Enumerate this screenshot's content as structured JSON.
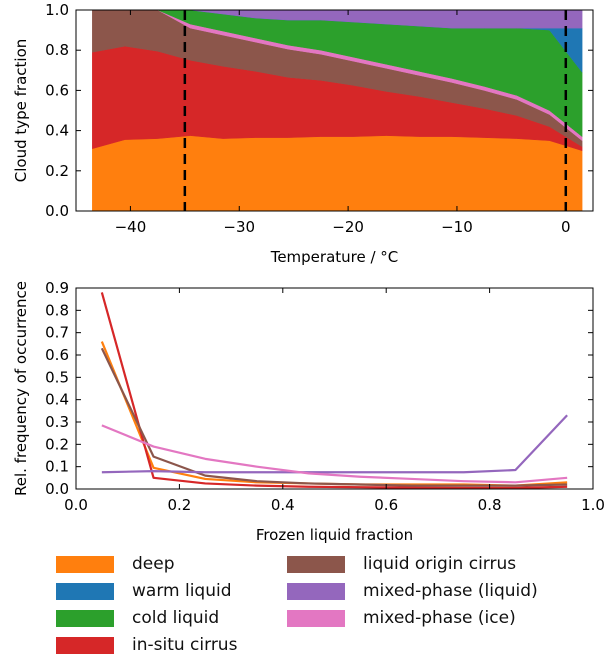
{
  "colors": {
    "deep": "#ff7f0e",
    "warm_liquid": "#1f77b4",
    "cold_liquid": "#2ca02c",
    "in_situ_cirrus": "#d62728",
    "liquid_origin_cirrus": "#8c564b",
    "mixed_phase_liquid": "#9467bd",
    "mixed_phase_ice": "#e377c2"
  },
  "legend": [
    {
      "key": "deep",
      "label": "deep"
    },
    {
      "key": "warm_liquid",
      "label": "warm liquid"
    },
    {
      "key": "cold_liquid",
      "label": "cold liquid"
    },
    {
      "key": "in_situ_cirrus",
      "label": "in-situ cirrus"
    },
    {
      "key": "liquid_origin_cirrus",
      "label": "liquid origin cirrus"
    },
    {
      "key": "mixed_phase_liquid",
      "label": "mixed-phase (liquid)"
    },
    {
      "key": "mixed_phase_ice",
      "label": "mixed-phase (ice)"
    }
  ],
  "chart_data": [
    {
      "type": "area",
      "stacked": true,
      "xlabel": "Temperature / °C",
      "ylabel": "Cloud type fraction",
      "xlim": [
        -45,
        2.5
      ],
      "ylim": [
        0,
        1.0
      ],
      "xticks": [
        -40,
        -30,
        -20,
        -10,
        0
      ],
      "xtick_labels": [
        "−40",
        "−30",
        "−20",
        "−10",
        "0"
      ],
      "yticks": [
        0.0,
        0.2,
        0.4,
        0.6,
        0.8,
        1.0
      ],
      "ytick_labels": [
        "0.0",
        "0.2",
        "0.4",
        "0.6",
        "0.8",
        "1.0"
      ],
      "vlines": [
        -35,
        0
      ],
      "vline_style": "dashed",
      "x": [
        -43.5,
        -40.5,
        -37.5,
        -34.5,
        -31.5,
        -28.5,
        -25.5,
        -22.5,
        -19.5,
        -16.5,
        -13.5,
        -10.5,
        -7.5,
        -4.5,
        -1.5,
        1.5
      ],
      "series": [
        {
          "key": "deep",
          "values": [
            0.31,
            0.355,
            0.36,
            0.375,
            0.36,
            0.365,
            0.365,
            0.37,
            0.37,
            0.375,
            0.37,
            0.37,
            0.365,
            0.36,
            0.35,
            0.3
          ]
        },
        {
          "key": "in_situ_cirrus",
          "values": [
            0.48,
            0.465,
            0.435,
            0.375,
            0.36,
            0.33,
            0.3,
            0.28,
            0.255,
            0.22,
            0.2,
            0.17,
            0.145,
            0.115,
            0.07,
            0.02
          ]
        },
        {
          "key": "liquid_origin_cirrus",
          "values": [
            0.21,
            0.18,
            0.205,
            0.16,
            0.155,
            0.145,
            0.14,
            0.13,
            0.12,
            0.115,
            0.105,
            0.1,
            0.09,
            0.08,
            0.06,
            0.03
          ]
        },
        {
          "key": "mixed_phase_ice",
          "values": [
            0.0,
            0.0,
            0.0,
            0.02,
            0.02,
            0.02,
            0.02,
            0.02,
            0.02,
            0.02,
            0.02,
            0.02,
            0.02,
            0.02,
            0.02,
            0.02
          ]
        },
        {
          "key": "cold_liquid",
          "values": [
            0.0,
            0.0,
            0.0,
            0.07,
            0.085,
            0.1,
            0.125,
            0.15,
            0.175,
            0.2,
            0.225,
            0.25,
            0.29,
            0.335,
            0.4,
            0.32
          ]
        },
        {
          "key": "warm_liquid",
          "values": [
            0.0,
            0.0,
            0.0,
            0.0,
            0.0,
            0.0,
            0.0,
            0.0,
            0.0,
            0.0,
            0.0,
            0.0,
            0.0,
            0.0,
            0.01,
            0.22
          ]
        },
        {
          "key": "mixed_phase_liquid",
          "values": [
            0.0,
            0.0,
            0.0,
            0.0,
            0.02,
            0.04,
            0.05,
            0.05,
            0.06,
            0.07,
            0.08,
            0.09,
            0.09,
            0.09,
            0.09,
            0.09
          ]
        }
      ]
    },
    {
      "type": "line",
      "xlabel": "Frozen liquid fraction",
      "ylabel": "Rel. frequency of occurrence",
      "xlim": [
        0.0,
        1.0
      ],
      "ylim": [
        0.0,
        0.9
      ],
      "xticks": [
        0.0,
        0.2,
        0.4,
        0.6,
        0.8,
        1.0
      ],
      "xtick_labels": [
        "0.0",
        "0.2",
        "0.4",
        "0.6",
        "0.8",
        "1.0"
      ],
      "yticks": [
        0.0,
        0.1,
        0.2,
        0.3,
        0.4,
        0.5,
        0.6,
        0.7,
        0.8,
        0.9
      ],
      "ytick_labels": [
        "0.0",
        "0.1",
        "0.2",
        "0.3",
        "0.4",
        "0.5",
        "0.6",
        "0.7",
        "0.8",
        "0.9"
      ],
      "x": [
        0.05,
        0.15,
        0.25,
        0.35,
        0.45,
        0.55,
        0.65,
        0.75,
        0.85,
        0.95
      ],
      "series": [
        {
          "key": "deep",
          "values": [
            0.66,
            0.095,
            0.045,
            0.03,
            0.025,
            0.02,
            0.02,
            0.02,
            0.015,
            0.03
          ]
        },
        {
          "key": "in_situ_cirrus",
          "values": [
            0.88,
            0.05,
            0.025,
            0.015,
            0.01,
            0.008,
            0.006,
            0.005,
            0.005,
            0.01
          ]
        },
        {
          "key": "liquid_origin_cirrus",
          "values": [
            0.63,
            0.145,
            0.06,
            0.035,
            0.025,
            0.02,
            0.015,
            0.015,
            0.015,
            0.02
          ]
        },
        {
          "key": "mixed_phase_liquid",
          "values": [
            0.075,
            0.08,
            0.075,
            0.075,
            0.075,
            0.075,
            0.075,
            0.075,
            0.085,
            0.33
          ]
        },
        {
          "key": "mixed_phase_ice",
          "values": [
            0.285,
            0.19,
            0.135,
            0.1,
            0.07,
            0.055,
            0.045,
            0.035,
            0.03,
            0.05
          ]
        }
      ]
    }
  ]
}
